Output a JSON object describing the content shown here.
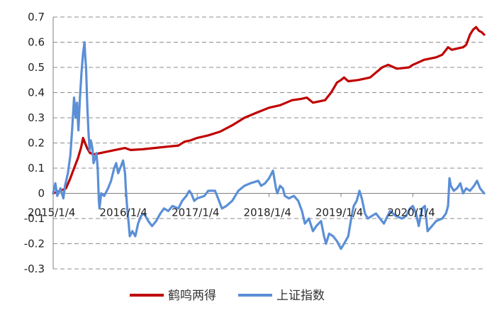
{
  "chart_data": {
    "type": "line",
    "title": "",
    "xlabel": "",
    "ylabel": "",
    "ylim": [
      -0.3,
      0.7
    ],
    "yticks": [
      "0.7",
      "0.6",
      "0.5",
      "0.4",
      "0.3",
      "0.2",
      "0.1",
      "0",
      "-0.1",
      "-0.2",
      "-0.3"
    ],
    "xticks": [
      "2015/1/4",
      "2016/1/4",
      "2017/1/4",
      "2018/1/4",
      "2019/1/4",
      "2020/1/4"
    ],
    "x_range": [
      "2015-01-04",
      "2020-12-31"
    ],
    "grid": "horizontal-dashed",
    "legend_position": "bottom",
    "series": [
      {
        "name": "鹤鸣两得",
        "color": "#C00000",
        "points": [
          [
            "2015-01-04",
            0.0
          ],
          [
            "2015-02-10",
            0.01
          ],
          [
            "2015-03-10",
            0.02
          ],
          [
            "2015-04-01",
            0.06
          ],
          [
            "2015-04-20",
            0.1
          ],
          [
            "2015-05-10",
            0.14
          ],
          [
            "2015-05-25",
            0.18
          ],
          [
            "2015-06-05",
            0.22
          ],
          [
            "2015-06-15",
            0.2
          ],
          [
            "2015-06-25",
            0.18
          ],
          [
            "2015-07-10",
            0.16
          ],
          [
            "2015-08-01",
            0.155
          ],
          [
            "2015-09-01",
            0.16
          ],
          [
            "2015-10-01",
            0.165
          ],
          [
            "2015-11-01",
            0.17
          ],
          [
            "2015-12-01",
            0.175
          ],
          [
            "2016-01-04",
            0.18
          ],
          [
            "2016-02-01",
            0.172
          ],
          [
            "2016-04-01",
            0.175
          ],
          [
            "2016-06-01",
            0.18
          ],
          [
            "2016-08-01",
            0.185
          ],
          [
            "2016-10-01",
            0.19
          ],
          [
            "2016-11-01",
            0.205
          ],
          [
            "2016-12-01",
            0.21
          ],
          [
            "2017-01-04",
            0.22
          ],
          [
            "2017-03-01",
            0.23
          ],
          [
            "2017-05-01",
            0.245
          ],
          [
            "2017-07-01",
            0.27
          ],
          [
            "2017-09-01",
            0.3
          ],
          [
            "2017-11-01",
            0.32
          ],
          [
            "2018-01-04",
            0.34
          ],
          [
            "2018-03-01",
            0.35
          ],
          [
            "2018-05-01",
            0.37
          ],
          [
            "2018-06-15",
            0.375
          ],
          [
            "2018-07-15",
            0.38
          ],
          [
            "2018-08-15",
            0.36
          ],
          [
            "2018-09-15",
            0.365
          ],
          [
            "2018-10-15",
            0.37
          ],
          [
            "2018-11-15",
            0.4
          ],
          [
            "2018-12-15",
            0.44
          ],
          [
            "2019-01-04",
            0.45
          ],
          [
            "2019-01-20",
            0.46
          ],
          [
            "2019-02-10",
            0.445
          ],
          [
            "2019-04-01",
            0.45
          ],
          [
            "2019-06-01",
            0.46
          ],
          [
            "2019-08-01",
            0.5
          ],
          [
            "2019-09-01",
            0.51
          ],
          [
            "2019-10-15",
            0.495
          ],
          [
            "2019-12-15",
            0.5
          ],
          [
            "2020-01-04",
            0.51
          ],
          [
            "2020-03-01",
            0.53
          ],
          [
            "2020-05-01",
            0.54
          ],
          [
            "2020-06-01",
            0.55
          ],
          [
            "2020-07-01",
            0.58
          ],
          [
            "2020-07-20",
            0.57
          ],
          [
            "2020-08-15",
            0.575
          ],
          [
            "2020-09-15",
            0.58
          ],
          [
            "2020-10-01",
            0.59
          ],
          [
            "2020-10-20",
            0.63
          ],
          [
            "2020-11-05",
            0.65
          ],
          [
            "2020-11-20",
            0.66
          ],
          [
            "2020-12-05",
            0.645
          ],
          [
            "2020-12-18",
            0.64
          ],
          [
            "2020-12-31",
            0.63
          ]
        ]
      },
      {
        "name": "上证指数",
        "color": "#5B8FD6",
        "points": [
          [
            "2015-01-04",
            0.0
          ],
          [
            "2015-01-15",
            0.04
          ],
          [
            "2015-01-25",
            -0.01
          ],
          [
            "2015-02-10",
            0.02
          ],
          [
            "2015-02-25",
            -0.02
          ],
          [
            "2015-03-05",
            0.03
          ],
          [
            "2015-03-20",
            0.08
          ],
          [
            "2015-04-01",
            0.15
          ],
          [
            "2015-04-10",
            0.25
          ],
          [
            "2015-04-20",
            0.38
          ],
          [
            "2015-04-28",
            0.3
          ],
          [
            "2015-05-05",
            0.36
          ],
          [
            "2015-05-12",
            0.25
          ],
          [
            "2015-05-20",
            0.38
          ],
          [
            "2015-05-28",
            0.48
          ],
          [
            "2015-06-04",
            0.55
          ],
          [
            "2015-06-12",
            0.6
          ],
          [
            "2015-06-16",
            0.54
          ],
          [
            "2015-06-20",
            0.5
          ],
          [
            "2015-06-26",
            0.35
          ],
          [
            "2015-07-02",
            0.25
          ],
          [
            "2015-07-08",
            0.17
          ],
          [
            "2015-07-14",
            0.21
          ],
          [
            "2015-07-22",
            0.18
          ],
          [
            "2015-07-28",
            0.12
          ],
          [
            "2015-08-05",
            0.14
          ],
          [
            "2015-08-12",
            0.16
          ],
          [
            "2015-08-18",
            0.1
          ],
          [
            "2015-08-24",
            -0.03
          ],
          [
            "2015-08-27",
            -0.06
          ],
          [
            "2015-09-05",
            0.0
          ],
          [
            "2015-09-20",
            -0.01
          ],
          [
            "2015-10-10",
            0.02
          ],
          [
            "2015-10-25",
            0.05
          ],
          [
            "2015-11-10",
            0.1
          ],
          [
            "2015-11-20",
            0.12
          ],
          [
            "2015-11-30",
            0.08
          ],
          [
            "2015-12-15",
            0.11
          ],
          [
            "2015-12-25",
            0.13
          ],
          [
            "2016-01-04",
            0.08
          ],
          [
            "2016-01-08",
            0.02
          ],
          [
            "2016-01-14",
            -0.05
          ],
          [
            "2016-01-20",
            -0.1
          ],
          [
            "2016-01-28",
            -0.17
          ],
          [
            "2016-02-10",
            -0.15
          ],
          [
            "2016-02-25",
            -0.17
          ],
          [
            "2016-03-10",
            -0.12
          ],
          [
            "2016-03-25",
            -0.09
          ],
          [
            "2016-04-10",
            -0.08
          ],
          [
            "2016-05-01",
            -0.11
          ],
          [
            "2016-05-20",
            -0.13
          ],
          [
            "2016-06-10",
            -0.11
          ],
          [
            "2016-07-01",
            -0.08
          ],
          [
            "2016-07-20",
            -0.06
          ],
          [
            "2016-08-10",
            -0.07
          ],
          [
            "2016-09-01",
            -0.05
          ],
          [
            "2016-10-01",
            -0.06
          ],
          [
            "2016-10-20",
            -0.03
          ],
          [
            "2016-11-10",
            -0.01
          ],
          [
            "2016-11-25",
            0.01
          ],
          [
            "2016-12-05",
            0.0
          ],
          [
            "2016-12-20",
            -0.03
          ],
          [
            "2017-01-04",
            -0.02
          ],
          [
            "2017-02-10",
            -0.01
          ],
          [
            "2017-03-01",
            0.01
          ],
          [
            "2017-04-05",
            0.01
          ],
          [
            "2017-04-20",
            -0.02
          ],
          [
            "2017-05-10",
            -0.06
          ],
          [
            "2017-06-01",
            -0.05
          ],
          [
            "2017-07-01",
            -0.03
          ],
          [
            "2017-08-01",
            0.01
          ],
          [
            "2017-09-01",
            0.03
          ],
          [
            "2017-10-01",
            0.04
          ],
          [
            "2017-11-10",
            0.05
          ],
          [
            "2017-11-25",
            0.03
          ],
          [
            "2017-12-15",
            0.04
          ],
          [
            "2018-01-04",
            0.06
          ],
          [
            "2018-01-24",
            0.09
          ],
          [
            "2018-02-08",
            0.02
          ],
          [
            "2018-02-15",
            0.0
          ],
          [
            "2018-03-01",
            0.03
          ],
          [
            "2018-03-15",
            0.02
          ],
          [
            "2018-03-25",
            -0.01
          ],
          [
            "2018-04-15",
            -0.02
          ],
          [
            "2018-05-10",
            -0.01
          ],
          [
            "2018-06-01",
            -0.03
          ],
          [
            "2018-06-20",
            -0.07
          ],
          [
            "2018-07-05",
            -0.12
          ],
          [
            "2018-07-25",
            -0.1
          ],
          [
            "2018-08-15",
            -0.15
          ],
          [
            "2018-09-01",
            -0.13
          ],
          [
            "2018-09-25",
            -0.11
          ],
          [
            "2018-10-10",
            -0.17
          ],
          [
            "2018-10-20",
            -0.2
          ],
          [
            "2018-11-05",
            -0.16
          ],
          [
            "2018-11-25",
            -0.17
          ],
          [
            "2018-12-15",
            -0.19
          ],
          [
            "2019-01-04",
            -0.22
          ],
          [
            "2019-01-20",
            -0.2
          ],
          [
            "2019-02-10",
            -0.17
          ],
          [
            "2019-02-25",
            -0.1
          ],
          [
            "2019-03-10",
            -0.05
          ],
          [
            "2019-03-25",
            -0.03
          ],
          [
            "2019-04-08",
            0.01
          ],
          [
            "2019-04-20",
            -0.02
          ],
          [
            "2019-05-06",
            -0.08
          ],
          [
            "2019-05-20",
            -0.1
          ],
          [
            "2019-06-10",
            -0.09
          ],
          [
            "2019-07-01",
            -0.08
          ],
          [
            "2019-08-10",
            -0.12
          ],
          [
            "2019-09-10",
            -0.07
          ],
          [
            "2019-10-10",
            -0.09
          ],
          [
            "2019-11-10",
            -0.1
          ],
          [
            "2019-12-01",
            -0.09
          ],
          [
            "2019-12-20",
            -0.06
          ],
          [
            "2020-01-04",
            -0.05
          ],
          [
            "2020-01-20",
            -0.08
          ],
          [
            "2020-02-03",
            -0.13
          ],
          [
            "2020-02-20",
            -0.06
          ],
          [
            "2020-03-05",
            -0.05
          ],
          [
            "2020-03-19",
            -0.15
          ],
          [
            "2020-04-10",
            -0.13
          ],
          [
            "2020-05-01",
            -0.11
          ],
          [
            "2020-06-01",
            -0.1
          ],
          [
            "2020-06-20",
            -0.08
          ],
          [
            "2020-07-01",
            -0.05
          ],
          [
            "2020-07-08",
            0.06
          ],
          [
            "2020-07-15",
            0.03
          ],
          [
            "2020-07-30",
            0.01
          ],
          [
            "2020-08-15",
            0.02
          ],
          [
            "2020-09-01",
            0.04
          ],
          [
            "2020-09-15",
            0.0
          ],
          [
            "2020-10-01",
            0.02
          ],
          [
            "2020-10-20",
            0.01
          ],
          [
            "2020-11-10",
            0.03
          ],
          [
            "2020-11-25",
            0.05
          ],
          [
            "2020-12-10",
            0.02
          ],
          [
            "2020-12-31",
            0.0
          ]
        ]
      }
    ]
  }
}
